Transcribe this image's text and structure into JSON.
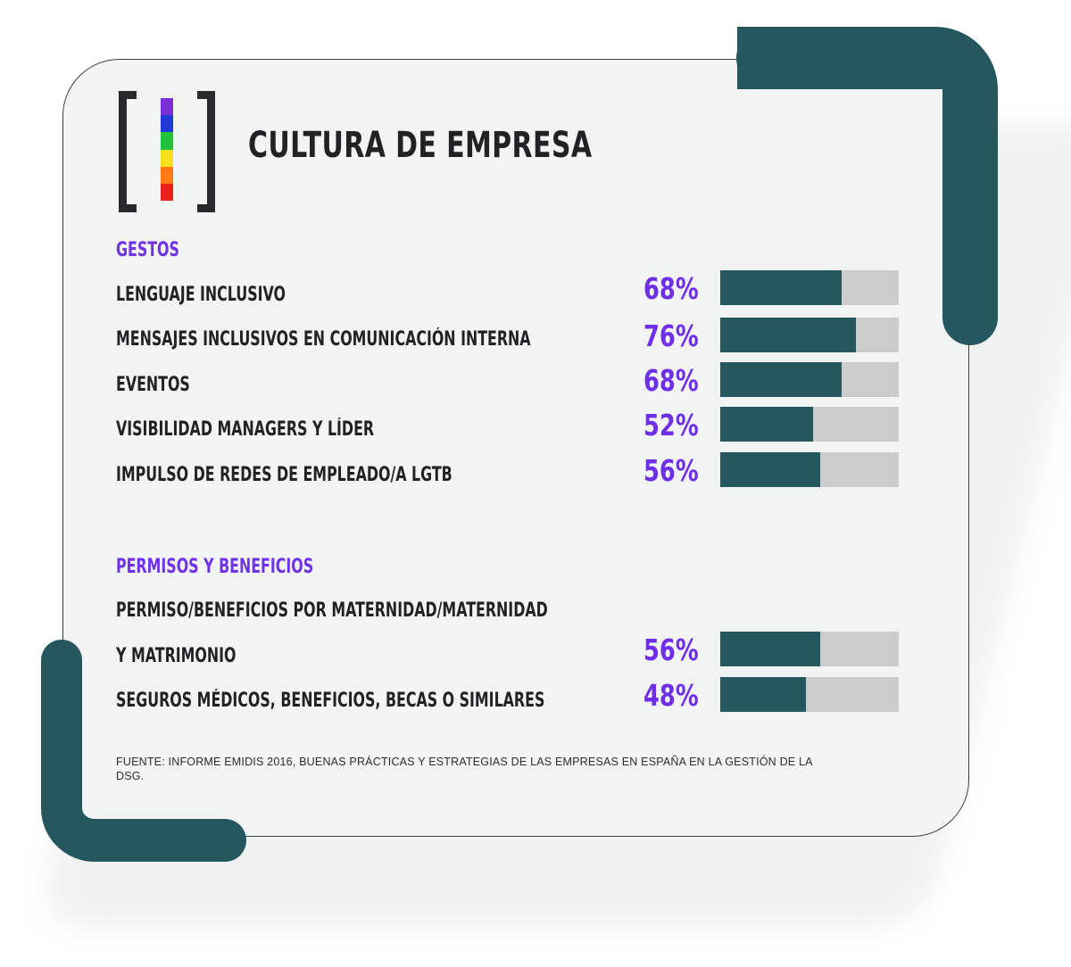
{
  "title": "CULTURA DE EMPRESA",
  "logo": {
    "stripe_colors": [
      "#7a2fd6",
      "#1f39d8",
      "#22c23b",
      "#f4e01b",
      "#ff7a12",
      "#e8211c"
    ]
  },
  "colors": {
    "accent": "#6f2fe8",
    "bar": "#24575e",
    "bar_track": "#cccccc",
    "frame": "#24575e"
  },
  "chart_data": {
    "type": "bar",
    "orientation": "horizontal",
    "unit": "%",
    "xlim": [
      0,
      100
    ],
    "groups": [
      {
        "name": "GESTOS",
        "rows": [
          {
            "label": "LENGUAJE INCLUSIVO",
            "value": 68,
            "value_label": "68%"
          },
          {
            "label": "MENSAJES INCLUSIVOS EN COMUNICACIÓN INTERNA",
            "value": 76,
            "value_label": "76%"
          },
          {
            "label": "EVENTOS",
            "value": 68,
            "value_label": "68%"
          },
          {
            "label": "VISIBILIDAD MANAGERS Y LÍDER",
            "value": 52,
            "value_label": "52%"
          },
          {
            "label": "IMPULSO DE REDES DE EMPLEADO/A  LGTB",
            "value": 56,
            "value_label": "56%"
          }
        ]
      },
      {
        "name": "PERMISOS Y BENEFICIOS",
        "rows": [
          {
            "label": "PERMISO/BENEFICIOS POR MATERNIDAD/MATERNIDAD",
            "label_line2": "Y MATRIMONIO",
            "value": 56,
            "value_label": "56%"
          },
          {
            "label": "SEGUROS MÉDICOS, BENEFICIOS, BECAS O SIMILARES",
            "value": 48,
            "value_label": "48%"
          }
        ]
      }
    ]
  },
  "source": "FUENTE: INFORME EMIDIS 2016, BUENAS  PRÁCTICAS Y ESTRATEGIAS DE LAS EMPRESAS EN ESPAÑA EN LA GESTIÓN DE LA DSG."
}
